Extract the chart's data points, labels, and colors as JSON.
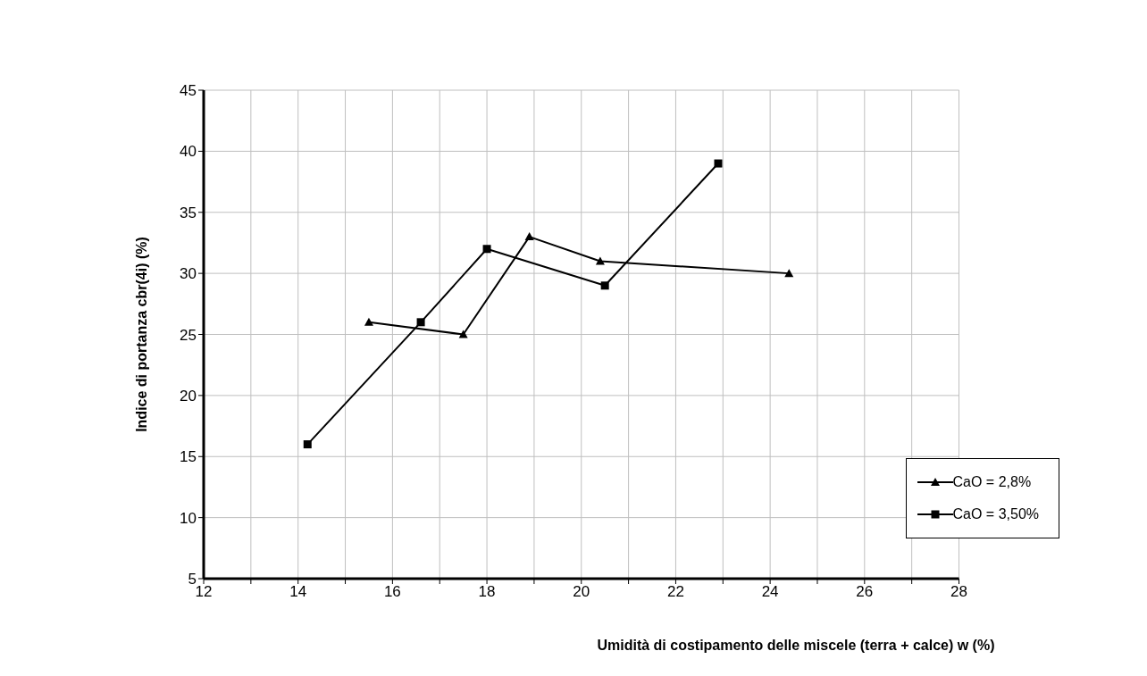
{
  "chart_data": {
    "type": "line",
    "xlabel": "Umidità di costipamento delle miscele (terra + calce)      w (%)",
    "ylabel": "Indice di portanza     cbr(4i)  (%)",
    "xlim": [
      12,
      28
    ],
    "xticks": [
      12,
      {
        "value": 13,
        "label": null
      },
      14,
      {
        "value": 15,
        "label": null
      },
      16,
      {
        "value": 17,
        "label": null
      },
      18,
      {
        "value": 19,
        "label": null
      },
      20,
      {
        "value": 21,
        "label": null
      },
      22,
      {
        "value": 23,
        "label": null
      },
      24,
      {
        "value": 25,
        "label": null
      },
      26,
      {
        "value": 27,
        "label": null
      },
      28
    ],
    "ylim": [
      5,
      45
    ],
    "yticks": [
      5,
      10,
      15,
      20,
      25,
      30,
      35,
      40,
      45
    ],
    "grid": true,
    "legend": "bottom right",
    "series": [
      {
        "name": "CaO = 2,8%",
        "color": "#000000",
        "marker": "triangle",
        "x": [
          15.5,
          17.5,
          18.9,
          20.4,
          24.4
        ],
        "values": [
          26,
          25,
          33,
          31,
          30
        ]
      },
      {
        "name": "CaO = 3,50%",
        "color": "#000000",
        "marker": "square",
        "x": [
          14.2,
          16.6,
          18.0,
          20.5,
          22.9
        ],
        "values": [
          16,
          26,
          32,
          29,
          39
        ]
      }
    ]
  }
}
